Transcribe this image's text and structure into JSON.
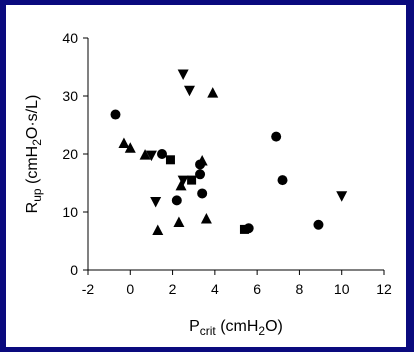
{
  "colors": {
    "frame": "#0a0a7e",
    "panel": "#ffffff",
    "ink": "#000000"
  },
  "chart_data": {
    "type": "scatter",
    "xlim": [
      -2,
      12
    ],
    "ylim": [
      0,
      40
    ],
    "x_ticks": [
      -2,
      0,
      2,
      4,
      6,
      8,
      10,
      12
    ],
    "y_ticks": [
      0,
      10,
      20,
      30,
      40
    ],
    "grid": false,
    "legend": "none",
    "xlabel": {
      "main": "P",
      "sub": "crit",
      "unit_pre": " (cmH",
      "unit_sub": "2",
      "unit_post": "O)"
    },
    "ylabel": {
      "main": "R",
      "sub": "up",
      "unit_pre": " (cmH",
      "unit_sub": "2",
      "unit_post": "O·s/L)"
    },
    "series": [
      {
        "marker": "circle",
        "points": [
          [
            -0.7,
            26.8
          ],
          [
            1.5,
            20.0
          ],
          [
            2.2,
            12.0
          ],
          [
            3.3,
            18.2
          ],
          [
            3.3,
            16.5
          ],
          [
            3.4,
            13.2
          ],
          [
            5.6,
            7.2
          ],
          [
            6.9,
            23.0
          ],
          [
            7.2,
            15.5
          ],
          [
            8.9,
            7.8
          ]
        ]
      },
      {
        "marker": "triangle",
        "points": [
          [
            -0.3,
            21.8
          ],
          [
            0.0,
            21.0
          ],
          [
            0.7,
            19.8
          ],
          [
            1.3,
            6.8
          ],
          [
            2.3,
            8.2
          ],
          [
            2.4,
            14.5
          ],
          [
            3.4,
            18.8
          ],
          [
            3.6,
            8.8
          ],
          [
            3.9,
            30.5
          ]
        ]
      },
      {
        "marker": "triangle-down",
        "points": [
          [
            1.0,
            19.8
          ],
          [
            1.2,
            11.8
          ],
          [
            2.5,
            33.8
          ],
          [
            2.8,
            31.0
          ],
          [
            2.5,
            15.5
          ],
          [
            10.0,
            12.8
          ]
        ]
      },
      {
        "marker": "square",
        "points": [
          [
            1.9,
            19.0
          ],
          [
            2.9,
            15.5
          ],
          [
            5.4,
            7.0
          ]
        ]
      }
    ]
  }
}
